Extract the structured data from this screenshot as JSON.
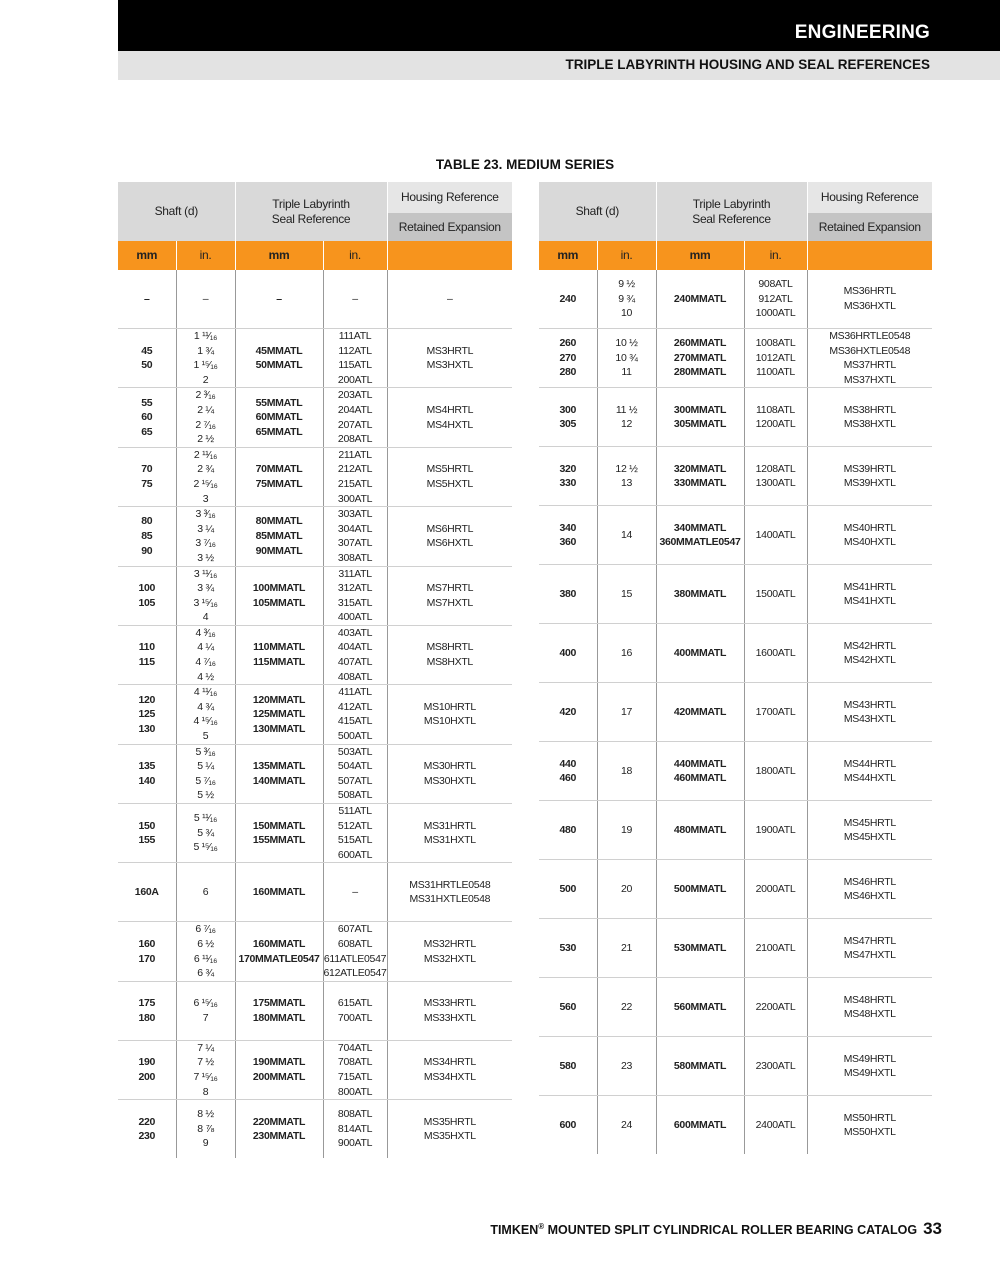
{
  "header": {
    "section": "ENGINEERING",
    "subtitle": "TRIPLE LABYRINTH HOUSING AND SEAL REFERENCES"
  },
  "table_title": "TABLE 23. MEDIUM SERIES",
  "columns": {
    "shaft": "Shaft (d)",
    "seal_ref": "Triple Labyrinth\nSeal Reference",
    "housing_ref": "Housing Reference",
    "retained": "Retained Expansion",
    "mm": "mm",
    "in": "in."
  },
  "colors": {
    "accent": "#f7941d",
    "header_bar": "#000000"
  },
  "left_rows": [
    [
      "–",
      "–",
      "–",
      "–",
      "–"
    ],
    [
      "45\n50",
      "1 ¹¹⁄₁₆\n1 ¾\n1 ¹⁵⁄₁₆\n2",
      "45MMATL\n50MMATL",
      "111ATL\n112ATL\n115ATL\n200ATL",
      "MS3HRTL\nMS3HXTL"
    ],
    [
      "55\n60\n65",
      "2 ³⁄₁₆\n2 ¼\n2 ⁷⁄₁₆\n2 ½",
      "55MMATL\n60MMATL\n65MMATL",
      "203ATL\n204ATL\n207ATL\n208ATL",
      "MS4HRTL\nMS4HXTL"
    ],
    [
      "70\n75",
      "2 ¹¹⁄₁₆\n2 ¾\n2 ¹⁵⁄₁₆\n3",
      "70MMATL\n75MMATL",
      "211ATL\n212ATL\n215ATL\n300ATL",
      "MS5HRTL\nMS5HXTL"
    ],
    [
      "80\n85\n90",
      "3 ³⁄₁₆\n3 ¼\n3 ⁷⁄₁₆\n3 ½",
      "80MMATL\n85MMATL\n90MMATL",
      "303ATL\n304ATL\n307ATL\n308ATL",
      "MS6HRTL\nMS6HXTL"
    ],
    [
      "100\n105",
      "3 ¹¹⁄₁₆\n3 ¾\n3 ¹⁵⁄₁₆\n4",
      "100MMATL\n105MMATL",
      "311ATL\n312ATL\n315ATL\n400ATL",
      "MS7HRTL\nMS7HXTL"
    ],
    [
      "110\n115",
      "4 ³⁄₁₆\n4 ¼\n4 ⁷⁄₁₆\n4 ½",
      "110MMATL\n115MMATL",
      "403ATL\n404ATL\n407ATL\n408ATL",
      "MS8HRTL\nMS8HXTL"
    ],
    [
      "120\n125\n130",
      "4 ¹¹⁄₁₆\n4 ¾\n4 ¹⁵⁄₁₆\n5",
      "120MMATL\n125MMATL\n130MMATL",
      "411ATL\n412ATL\n415ATL\n500ATL",
      "MS10HRTL\nMS10HXTL"
    ],
    [
      "135\n140",
      "5 ³⁄₁₆\n5 ¼\n5 ⁷⁄₁₆\n5 ½",
      "135MMATL\n140MMATL",
      "503ATL\n504ATL\n507ATL\n508ATL",
      "MS30HRTL\nMS30HXTL"
    ],
    [
      "150\n155",
      "5 ¹¹⁄₁₆\n5 ¾\n5 ¹⁵⁄₁₆",
      "150MMATL\n155MMATL",
      "511ATL\n512ATL\n515ATL\n600ATL",
      "MS31HRTL\nMS31HXTL"
    ],
    [
      "160A",
      "6",
      "160MMATL",
      "–",
      "MS31HRTLE0548\nMS31HXTLE0548"
    ],
    [
      "160\n170",
      "6 ⁷⁄₁₆\n6 ½\n6 ¹¹⁄₁₆\n6 ¾",
      "160MMATL\n170MMATLE0547",
      "607ATL\n608ATL\n611ATLE0547\n612ATLE0547",
      "MS32HRTL\nMS32HXTL"
    ],
    [
      "175\n180",
      "6 ¹⁵⁄₁₆\n7",
      "175MMATL\n180MMATL",
      "615ATL\n700ATL",
      "MS33HRTL\nMS33HXTL"
    ],
    [
      "190\n200",
      "7 ¼\n7 ½\n7 ¹⁵⁄₁₆\n8",
      "190MMATL\n200MMATL",
      "704ATL\n708ATL\n715ATL\n800ATL",
      "MS34HRTL\nMS34HXTL"
    ],
    [
      "220\n230",
      "8 ½\n8 ⅞\n9",
      "220MMATL\n230MMATL",
      "808ATL\n814ATL\n900ATL",
      "MS35HRTL\nMS35HXTL"
    ]
  ],
  "right_rows": [
    [
      "240",
      "9 ½\n9 ¾\n10",
      "240MMATL",
      "908ATL\n912ATL\n1000ATL",
      "MS36HRTL\nMS36HXTL"
    ],
    [
      "260\n270\n280",
      "10 ½\n10 ¾\n11",
      "260MMATL\n270MMATL\n280MMATL",
      "1008ATL\n1012ATL\n1100ATL",
      "MS36HRTLE0548\nMS36HXTLE0548\nMS37HRTL\nMS37HXTL"
    ],
    [
      "300\n305",
      "11 ½\n12",
      "300MMATL\n305MMATL",
      "1108ATL\n1200ATL",
      "MS38HRTL\nMS38HXTL"
    ],
    [
      "320\n330",
      "12 ½\n13",
      "320MMATL\n330MMATL",
      "1208ATL\n1300ATL",
      "MS39HRTL\nMS39HXTL"
    ],
    [
      "340\n360",
      "14",
      "340MMATL\n360MMATLE0547",
      "1400ATL",
      "MS40HRTL\nMS40HXTL"
    ],
    [
      "380",
      "15",
      "380MMATL",
      "1500ATL",
      "MS41HRTL\nMS41HXTL"
    ],
    [
      "400",
      "16",
      "400MMATL",
      "1600ATL",
      "MS42HRTL\nMS42HXTL"
    ],
    [
      "420",
      "17",
      "420MMATL",
      "1700ATL",
      "MS43HRTL\nMS43HXTL"
    ],
    [
      "440\n460",
      "18",
      "440MMATL\n460MMATL",
      "1800ATL",
      "MS44HRTL\nMS44HXTL"
    ],
    [
      "480",
      "19",
      "480MMATL",
      "1900ATL",
      "MS45HRTL\nMS45HXTL"
    ],
    [
      "500",
      "20",
      "500MMATL",
      "2000ATL",
      "MS46HRTL\nMS46HXTL"
    ],
    [
      "530",
      "21",
      "530MMATL",
      "2100ATL",
      "MS47HRTL\nMS47HXTL"
    ],
    [
      "560",
      "22",
      "560MMATL",
      "2200ATL",
      "MS48HRTL\nMS48HXTL"
    ],
    [
      "580",
      "23",
      "580MMATL",
      "2300ATL",
      "MS49HRTL\nMS49HXTL"
    ],
    [
      "600",
      "24",
      "600MMATL",
      "2400ATL",
      "MS50HRTL\nMS50HXTL"
    ]
  ],
  "footer": {
    "brand": "TIMKEN",
    "reg": "®",
    "catalog": " MOUNTED SPLIT CYLINDRICAL ROLLER BEARING CATALOG",
    "page": "33"
  }
}
